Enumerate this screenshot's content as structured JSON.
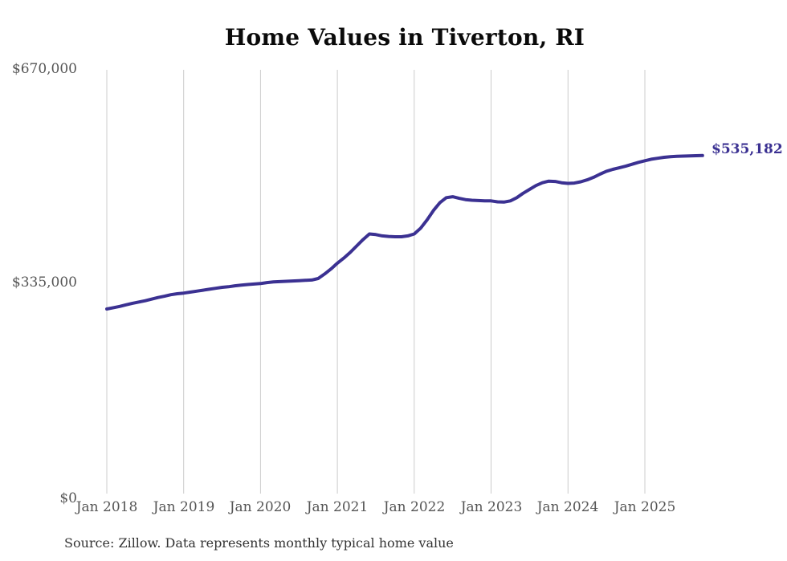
{
  "title": "Home Values in Tiverton, RI",
  "source_note": "Source: Zillow. Data represents monthly typical home value",
  "end_label": "$535,182",
  "colors": {
    "line": "#3b3192",
    "grid": "#cccccc",
    "axis_label": "#555555",
    "title": "#0a0a0a",
    "end_label": "#3b3192",
    "source": "#333333",
    "background": "#ffffff"
  },
  "chart_data": {
    "type": "line",
    "title": "Home Values in Tiverton, RI",
    "series_name": "Monthly typical home value",
    "unit": "USD",
    "ylim": [
      0,
      670000
    ],
    "grid": "vertical-only",
    "legend": "none",
    "last_value": 535182,
    "last_value_label": "$535,182",
    "y_ticks": [
      {
        "value": 670000,
        "label": "$670,000"
      },
      {
        "value": 335000,
        "label": "$335,000"
      },
      {
        "value": 0,
        "label": "$0"
      }
    ],
    "x_ticks": [
      "Jan 2018",
      "Jan 2019",
      "Jan 2020",
      "Jan 2021",
      "Jan 2022",
      "Jan 2023",
      "Jan 2024",
      "Jan 2025"
    ],
    "x": [
      "2018-01",
      "2018-02",
      "2018-03",
      "2018-04",
      "2018-05",
      "2018-06",
      "2018-07",
      "2018-08",
      "2018-09",
      "2018-10",
      "2018-11",
      "2018-12",
      "2019-01",
      "2019-02",
      "2019-03",
      "2019-04",
      "2019-05",
      "2019-06",
      "2019-07",
      "2019-08",
      "2019-09",
      "2019-10",
      "2019-11",
      "2019-12",
      "2020-01",
      "2020-02",
      "2020-03",
      "2020-04",
      "2020-05",
      "2020-06",
      "2020-07",
      "2020-08",
      "2020-09",
      "2020-10",
      "2020-11",
      "2020-12",
      "2021-01",
      "2021-02",
      "2021-03",
      "2021-04",
      "2021-05",
      "2021-06",
      "2021-07",
      "2021-08",
      "2021-09",
      "2021-10",
      "2021-11",
      "2021-12",
      "2022-01",
      "2022-02",
      "2022-03",
      "2022-04",
      "2022-05",
      "2022-06",
      "2022-07",
      "2022-08",
      "2022-09",
      "2022-10",
      "2022-11",
      "2022-12",
      "2023-01",
      "2023-02",
      "2023-03",
      "2023-04",
      "2023-05",
      "2023-06",
      "2023-07",
      "2023-08",
      "2023-09",
      "2023-10",
      "2023-11",
      "2023-12",
      "2024-01",
      "2024-02",
      "2024-03",
      "2024-04",
      "2024-05",
      "2024-06",
      "2024-07",
      "2024-08",
      "2024-09",
      "2024-10",
      "2024-11",
      "2024-12",
      "2025-01",
      "2025-02",
      "2025-03",
      "2025-04",
      "2025-05",
      "2025-06",
      "2025-07",
      "2025-08",
      "2025-09",
      "2025-10"
    ],
    "values": [
      294000,
      296000,
      298000,
      300500,
      303000,
      305000,
      307000,
      309500,
      312000,
      314000,
      316500,
      318000,
      319000,
      320500,
      322000,
      323500,
      325000,
      326500,
      328000,
      329000,
      330500,
      331500,
      332500,
      333200,
      334000,
      335500,
      336500,
      337000,
      337500,
      338000,
      338500,
      339000,
      339500,
      342000,
      349000,
      357000,
      366000,
      374000,
      383000,
      393000,
      403000,
      412000,
      411000,
      409000,
      408000,
      407500,
      407500,
      409000,
      412000,
      421000,
      434000,
      449000,
      461000,
      469000,
      470500,
      468000,
      466000,
      465000,
      464500,
      464000,
      464000,
      462500,
      462000,
      464000,
      469000,
      476000,
      482000,
      488000,
      492500,
      495000,
      494500,
      492500,
      491500,
      492000,
      494000,
      497000,
      501000,
      506000,
      510500,
      513500,
      516000,
      518500,
      521500,
      524500,
      527000,
      529500,
      531000,
      532500,
      533500,
      534000,
      534300,
      534700,
      535000,
      535182
    ]
  }
}
